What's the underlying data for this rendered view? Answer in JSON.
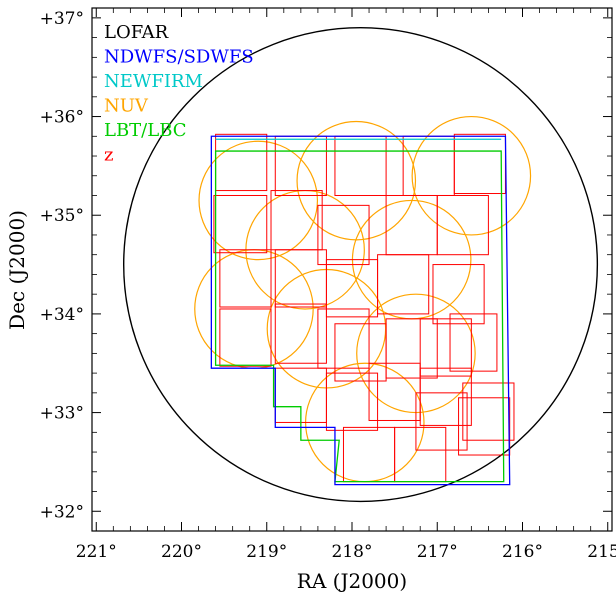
{
  "chart_data": {
    "type": "scatter",
    "xlabel": "RA (J2000)",
    "ylabel": "Dec (J2000)",
    "xlim": [
      221.05,
      214.95
    ],
    "ylim": [
      31.8,
      37.1
    ],
    "x_ticks": [
      {
        "value": 221,
        "label": "221°"
      },
      {
        "value": 220,
        "label": "220°"
      },
      {
        "value": 219,
        "label": "219°"
      },
      {
        "value": 218,
        "label": "218°"
      },
      {
        "value": 217,
        "label": "217°"
      },
      {
        "value": 216,
        "label": "216°"
      },
      {
        "value": 215,
        "label": "215°"
      }
    ],
    "y_ticks": [
      {
        "value": 32,
        "label": "+32°"
      },
      {
        "value": 33,
        "label": "+33°"
      },
      {
        "value": 34,
        "label": "+34°"
      },
      {
        "value": 35,
        "label": "+35°"
      },
      {
        "value": 36,
        "label": "+36°"
      },
      {
        "value": 37,
        "label": "+37°"
      }
    ],
    "grid": false,
    "legend": {
      "placement": "top-left",
      "entries": [
        {
          "label": "LOFAR",
          "color": "#000000"
        },
        {
          "label": "NDWFS/SDWFS",
          "color": "#0000ff"
        },
        {
          "label": "NEWFIRM",
          "color": "#00c8c8"
        },
        {
          "label": "NUV",
          "color": "#ffa500"
        },
        {
          "label": "LBT/LBC",
          "color": "#00cc00"
        },
        {
          "label": "z",
          "color": "#ff0000"
        }
      ]
    },
    "series": [
      {
        "name": "LOFAR",
        "color": "#000000",
        "shape": "circle",
        "center": [
          217.9,
          34.5
        ],
        "radius_dec": 2.4
      },
      {
        "name": "NDWFS/SDWFS",
        "color": "#0000ff",
        "shape": "polygon",
        "points": [
          [
            219.65,
            35.8
          ],
          [
            216.2,
            35.8
          ],
          [
            216.15,
            32.27
          ],
          [
            218.2,
            32.27
          ],
          [
            218.2,
            32.85
          ],
          [
            218.9,
            32.85
          ],
          [
            218.9,
            33.45
          ],
          [
            219.65,
            33.45
          ]
        ]
      },
      {
        "name": "NEWFIRM",
        "color": "#00c8c8",
        "shape": "polyline",
        "points": [
          [
            219.6,
            35.77
          ],
          [
            216.25,
            35.77
          ]
        ]
      },
      {
        "name": "LBT/LBC",
        "color": "#00cc00",
        "shape": "polygon",
        "points": [
          [
            219.6,
            35.65
          ],
          [
            216.25,
            35.65
          ],
          [
            216.22,
            32.3
          ],
          [
            218.2,
            32.3
          ],
          [
            218.15,
            32.72
          ],
          [
            218.6,
            32.72
          ],
          [
            218.6,
            33.06
          ],
          [
            218.92,
            33.06
          ],
          [
            218.92,
            33.48
          ],
          [
            219.6,
            33.48
          ]
        ]
      },
      {
        "name": "NUV",
        "color": "#ffa500",
        "shape": "circles",
        "radius_dec": 0.6,
        "centers": [
          [
            219.1,
            35.15
          ],
          [
            217.95,
            35.35
          ],
          [
            216.6,
            35.4
          ],
          [
            218.55,
            34.65
          ],
          [
            217.3,
            34.55
          ],
          [
            219.15,
            34.05
          ],
          [
            218.3,
            33.85
          ],
          [
            217.25,
            33.6
          ],
          [
            217.85,
            32.9
          ]
        ]
      },
      {
        "name": "z",
        "color": "#ff0000",
        "shape": "rects",
        "rects": [
          [
            219.6,
            35.82,
            219.0,
            35.25
          ],
          [
            218.9,
            35.8,
            218.3,
            35.2
          ],
          [
            218.2,
            35.8,
            217.6,
            35.2
          ],
          [
            217.4,
            35.8,
            216.8,
            35.2
          ],
          [
            216.8,
            35.82,
            216.2,
            35.22
          ],
          [
            219.62,
            35.2,
            219.0,
            34.62
          ],
          [
            218.95,
            35.25,
            218.35,
            34.65
          ],
          [
            218.4,
            35.1,
            217.8,
            34.5
          ],
          [
            217.6,
            35.2,
            217.0,
            34.6
          ],
          [
            217.0,
            35.2,
            216.4,
            34.6
          ],
          [
            219.55,
            34.65,
            218.95,
            34.07
          ],
          [
            218.9,
            34.65,
            218.3,
            34.07
          ],
          [
            218.3,
            34.55,
            217.7,
            33.97
          ],
          [
            217.7,
            34.6,
            217.1,
            34.0
          ],
          [
            217.05,
            34.5,
            216.45,
            33.9
          ],
          [
            219.55,
            34.05,
            218.95,
            33.47
          ],
          [
            218.9,
            34.1,
            218.3,
            33.5
          ],
          [
            218.4,
            34.05,
            217.8,
            33.45
          ],
          [
            218.2,
            33.9,
            217.6,
            33.32
          ],
          [
            217.6,
            33.95,
            217.0,
            33.35
          ],
          [
            217.2,
            33.95,
            216.6,
            33.37
          ],
          [
            216.85,
            34.0,
            216.3,
            33.42
          ],
          [
            218.9,
            33.45,
            218.3,
            32.9
          ],
          [
            218.3,
            33.4,
            217.7,
            32.82
          ],
          [
            217.8,
            33.5,
            217.2,
            32.92
          ],
          [
            217.2,
            33.45,
            216.6,
            32.87
          ],
          [
            216.7,
            33.3,
            216.1,
            32.72
          ],
          [
            218.1,
            32.85,
            217.5,
            32.3
          ],
          [
            217.5,
            32.85,
            216.9,
            32.3
          ],
          [
            217.25,
            33.2,
            216.65,
            32.62
          ],
          [
            216.75,
            33.15,
            216.15,
            32.57
          ]
        ]
      }
    ]
  }
}
